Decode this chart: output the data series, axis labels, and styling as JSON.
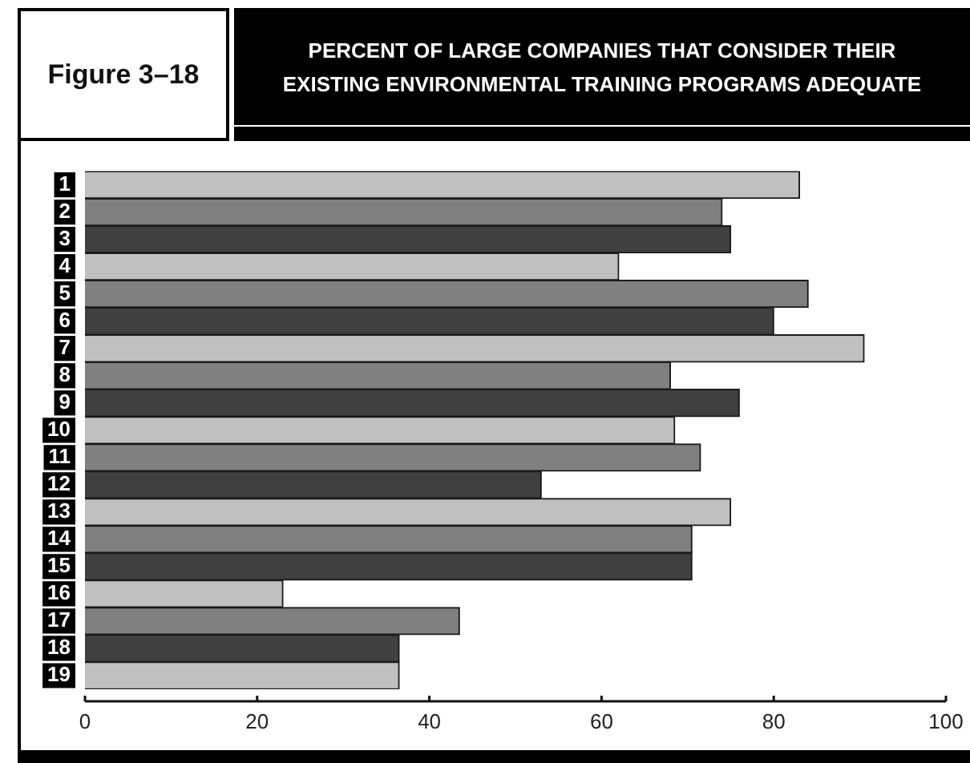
{
  "chart_data": {
    "type": "bar",
    "orientation": "horizontal",
    "title": "PERCENT OF LARGE COMPANIES THAT CONSIDER THEIR EXISTING ENVIRONMENTAL TRAINING PROGRAMS ADEQUATE",
    "annotations": [
      "Figure 3–18"
    ],
    "categories": [
      "1",
      "2",
      "3",
      "4",
      "5",
      "6",
      "7",
      "8",
      "9",
      "10",
      "11",
      "12",
      "13",
      "14",
      "15",
      "16",
      "17",
      "18",
      "19"
    ],
    "values": [
      83,
      74,
      75,
      62,
      84,
      80,
      90.5,
      68,
      76,
      68.5,
      71.5,
      53,
      75,
      70.5,
      70.5,
      23,
      43.5,
      36.5,
      36.5
    ],
    "colors": [
      "#c0c0c0",
      "#808080",
      "#404040",
      "#c0c0c0",
      "#808080",
      "#404040",
      "#c0c0c0",
      "#808080",
      "#404040",
      "#c0c0c0",
      "#808080",
      "#404040",
      "#c0c0c0",
      "#808080",
      "#404040",
      "#c0c0c0",
      "#808080",
      "#404040",
      "#c0c0c0"
    ],
    "xlim": [
      0,
      100
    ],
    "xticks": [
      0,
      20,
      40,
      60,
      80,
      100
    ]
  }
}
